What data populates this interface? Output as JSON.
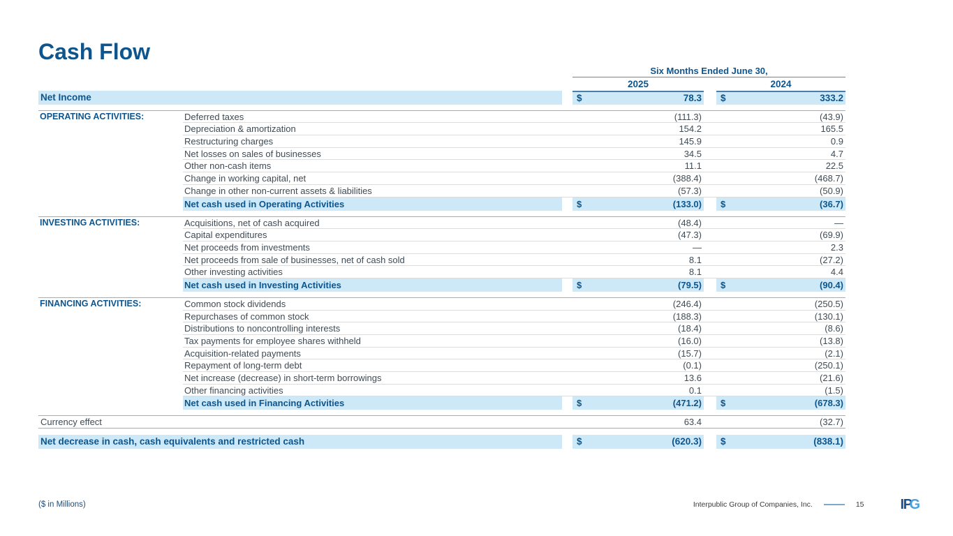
{
  "title": "Cash Flow",
  "table": {
    "period_header": "Six Months Ended June 30,",
    "years": [
      "2025",
      "2024"
    ],
    "dollar": "$",
    "net_income": {
      "label": "Net Income",
      "values": [
        "78.3",
        "333.2"
      ]
    },
    "sections": [
      {
        "name": "OPERATING ACTIVITIES:",
        "rows": [
          {
            "label": "Deferred taxes",
            "values": [
              "(111.3)",
              "(43.9)"
            ]
          },
          {
            "label": "Depreciation & amortization",
            "values": [
              "154.2",
              "165.5"
            ]
          },
          {
            "label": "Restructuring charges",
            "values": [
              "145.9",
              "0.9"
            ]
          },
          {
            "label": "Net losses on sales of businesses",
            "values": [
              "34.5",
              "4.7"
            ]
          },
          {
            "label": "Other non-cash items",
            "values": [
              "11.1",
              "22.5"
            ]
          },
          {
            "label": "Change in working capital, net",
            "values": [
              "(388.4)",
              "(468.7)"
            ]
          },
          {
            "label": "Change in other non-current assets & liabilities",
            "values": [
              "(57.3)",
              "(50.9)"
            ]
          }
        ],
        "total": {
          "label": "Net cash used in Operating Activities",
          "values": [
            "(133.0)",
            "(36.7)"
          ]
        }
      },
      {
        "name": "INVESTING ACTIVITIES:",
        "rows": [
          {
            "label": "Acquisitions, net of cash acquired",
            "values": [
              "(48.4)",
              "—"
            ]
          },
          {
            "label": "Capital expenditures",
            "values": [
              "(47.3)",
              "(69.9)"
            ]
          },
          {
            "label": "Net proceeds from investments",
            "values": [
              "—",
              "2.3"
            ]
          },
          {
            "label": "Net proceeds from sale of businesses, net of cash sold",
            "values": [
              "8.1",
              "(27.2)"
            ]
          },
          {
            "label": "Other investing activities",
            "values": [
              "8.1",
              "4.4"
            ]
          }
        ],
        "total": {
          "label": "Net cash used in Investing Activities",
          "values": [
            "(79.5)",
            "(90.4)"
          ]
        }
      },
      {
        "name": "FINANCING ACTIVITIES:",
        "rows": [
          {
            "label": "Common stock dividends",
            "values": [
              "(246.4)",
              "(250.5)"
            ]
          },
          {
            "label": "Repurchases of common stock",
            "values": [
              "(188.3)",
              "(130.1)"
            ]
          },
          {
            "label": "Distributions to noncontrolling interests",
            "values": [
              "(18.4)",
              "(8.6)"
            ]
          },
          {
            "label": "Tax payments for employee shares withheld",
            "values": [
              "(16.0)",
              "(13.8)"
            ]
          },
          {
            "label": "Acquisition-related payments",
            "values": [
              "(15.7)",
              "(2.1)"
            ]
          },
          {
            "label": "Repayment of long-term debt",
            "values": [
              "(0.1)",
              "(250.1)"
            ]
          },
          {
            "label": "Net increase (decrease) in short-term borrowings",
            "values": [
              "13.6",
              "(21.6)"
            ]
          },
          {
            "label": "Other financing activities",
            "values": [
              "0.1",
              "(1.5)"
            ]
          }
        ],
        "total": {
          "label": "Net cash used in Financing Activities",
          "values": [
            "(471.2)",
            "(678.3)"
          ]
        }
      }
    ],
    "currency_effect": {
      "label": "Currency effect",
      "values": [
        "63.4",
        "(32.7)"
      ]
    },
    "net_decrease": {
      "label": "Net decrease in cash, cash equivalents and restricted cash",
      "values": [
        "(620.3)",
        "(838.1)"
      ]
    }
  },
  "footer": {
    "note": "($ in Millions)",
    "company": "Interpublic Group of Companies, Inc.",
    "page": "15",
    "logo_part1": "IP",
    "logo_part2": "G"
  },
  "colors": {
    "accent_blue": "#0E558E",
    "highlight_blue": "#CDE9F7",
    "body_text": "#3F4B55",
    "logo_dark_blue": "#1D4F91",
    "logo_light_blue": "#49A0DC"
  }
}
